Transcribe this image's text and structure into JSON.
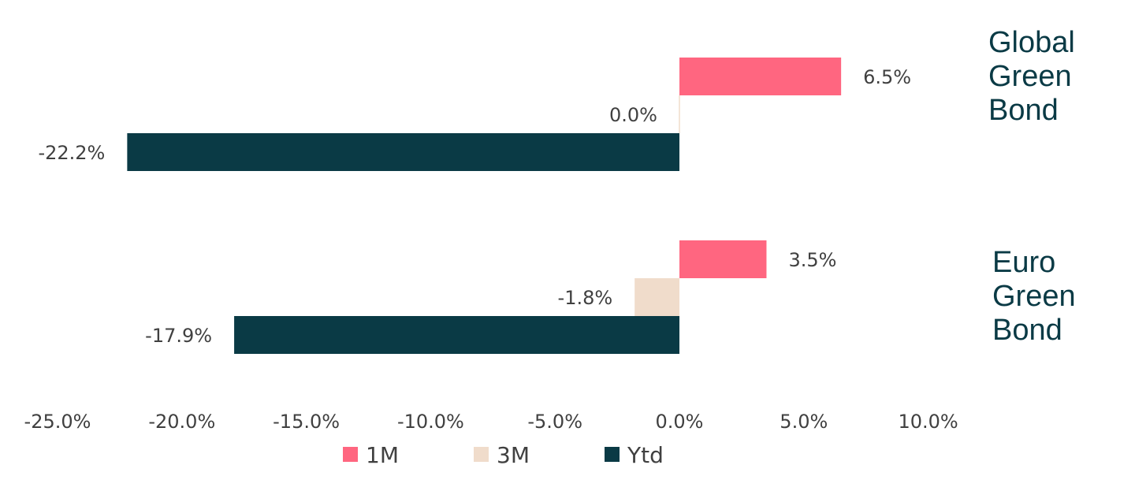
{
  "chart_data": {
    "type": "bar",
    "orientation": "horizontal",
    "categories": [
      "Global Green Bond",
      "Euro Green Bond"
    ],
    "category_label_lines": [
      [
        "Global",
        "Green",
        "Bond"
      ],
      [
        "Euro",
        "Green",
        "Bond"
      ]
    ],
    "series": [
      {
        "name": "1M",
        "color": "#ff6680",
        "values": [
          6.5,
          3.5
        ],
        "data_labels": [
          "6.5%",
          "3.5%"
        ]
      },
      {
        "name": "3M",
        "color": "#f0dccb",
        "values": [
          0.0,
          -1.8
        ],
        "data_labels": [
          "0.0%",
          "-1.8%"
        ]
      },
      {
        "name": "Ytd",
        "color": "#0a3a45",
        "values": [
          -22.2,
          -17.9
        ],
        "data_labels": [
          "-22.2%",
          "-17.9%"
        ]
      }
    ],
    "xlim": [
      -25,
      10
    ],
    "x_ticks": [
      -25,
      -20,
      -15,
      -10,
      -5,
      0,
      5,
      10
    ],
    "x_tick_labels": [
      "-25.0%",
      "-20.0%",
      "-15.0%",
      "-10.0%",
      "-5.0%",
      "0.0%",
      "5.0%",
      "10.0%"
    ],
    "grid": false,
    "legend_position": "bottom",
    "title": "",
    "xlabel": "",
    "ylabel": ""
  }
}
